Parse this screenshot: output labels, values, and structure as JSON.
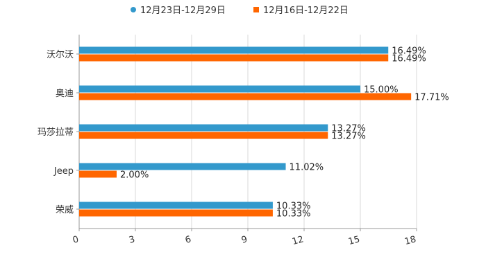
{
  "chart_data": {
    "type": "bar",
    "orientation": "horizontal",
    "categories": [
      "沃尔沃",
      "奥迪",
      "玛莎拉蒂",
      "Jeep",
      "荣威"
    ],
    "series": [
      {
        "name": "12月23日-12月29日",
        "color": "#3399cc",
        "values": [
          16.49,
          15.0,
          13.27,
          11.02,
          10.33
        ],
        "labels": [
          "16.49%",
          "15.00%",
          "13.27%",
          "11.02%",
          "10.33%"
        ]
      },
      {
        "name": "12月16日-12月22日",
        "color": "#ff6600",
        "values": [
          16.49,
          17.71,
          13.27,
          2.0,
          10.33
        ],
        "labels": [
          "16.49%",
          "17.71%",
          "13.27%",
          "2.00%",
          "10.33%"
        ]
      }
    ],
    "xlim": [
      0,
      18
    ],
    "xticks": [
      0,
      3,
      6,
      9,
      12,
      15,
      18
    ],
    "xtick_labels": [
      "0",
      "3",
      "6",
      "9",
      "12",
      "15",
      "18"
    ],
    "grid": true,
    "legend_position": "top-center",
    "title": "",
    "xlabel": "",
    "ylabel": ""
  }
}
